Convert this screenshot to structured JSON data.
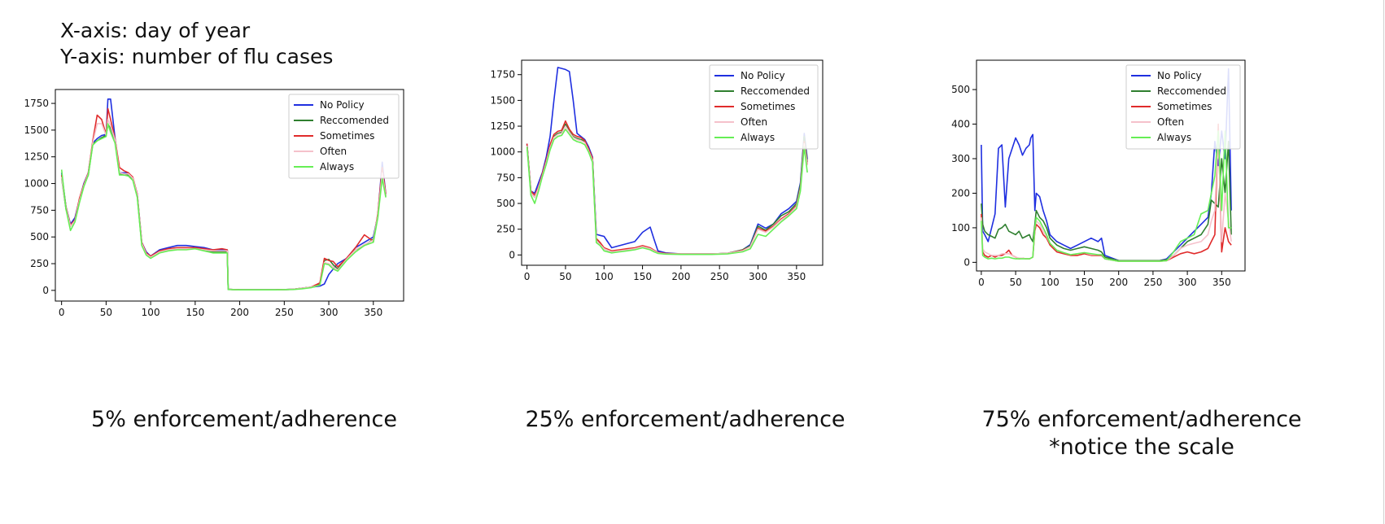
{
  "notes": {
    "x_axis": "X-axis: day of year",
    "y_axis": "Y-axis: number of flu cases"
  },
  "captions": [
    {
      "line1": "5% enforcement/adherence",
      "line2": ""
    },
    {
      "line1": "25% enforcement/adherence",
      "line2": ""
    },
    {
      "line1": "75% enforcement/adherence",
      "line2": "*notice the scale"
    }
  ],
  "colors": {
    "no_policy": "#1f2fe0",
    "reccomended": "#2f7f2f",
    "sometimes": "#e02b2b",
    "often": "#f5c1cb",
    "always": "#66ee55"
  },
  "chart_data": [
    {
      "type": "line",
      "title": "",
      "xlabel": "",
      "ylabel": "",
      "xlim": [
        -7,
        384
      ],
      "ylim": [
        -100,
        1880
      ],
      "xticks": [
        0,
        50,
        100,
        150,
        200,
        250,
        300,
        350
      ],
      "yticks": [
        0,
        250,
        500,
        750,
        1000,
        1250,
        1500,
        1750
      ],
      "grid": false,
      "legend": "top-right",
      "x": [
        0,
        5,
        10,
        15,
        20,
        25,
        30,
        35,
        40,
        45,
        50,
        52,
        55,
        60,
        65,
        70,
        75,
        80,
        85,
        90,
        95,
        100,
        110,
        120,
        130,
        140,
        150,
        160,
        170,
        180,
        186,
        187,
        200,
        220,
        240,
        260,
        270,
        280,
        290,
        295,
        300,
        305,
        310,
        320,
        330,
        340,
        350,
        355,
        360,
        364
      ],
      "series": [
        {
          "name": "No Policy",
          "color": "#1f2fe0",
          "values": [
            1100,
            780,
            620,
            680,
            850,
            1000,
            1100,
            1380,
            1420,
            1450,
            1460,
            1790,
            1790,
            1430,
            1100,
            1100,
            1100,
            1050,
            900,
            450,
            360,
            320,
            380,
            400,
            420,
            420,
            410,
            400,
            380,
            380,
            380,
            10,
            5,
            5,
            5,
            10,
            20,
            30,
            40,
            60,
            150,
            200,
            250,
            300,
            400,
            450,
            500,
            700,
            1200,
            900
          ]
        },
        {
          "name": "Reccomended",
          "color": "#2f7f2f",
          "values": [
            1050,
            760,
            600,
            650,
            830,
            980,
            1080,
            1370,
            1400,
            1430,
            1450,
            1550,
            1520,
            1400,
            1090,
            1080,
            1080,
            1040,
            880,
            430,
            340,
            310,
            360,
            380,
            390,
            390,
            390,
            380,
            360,
            360,
            360,
            10,
            5,
            5,
            5,
            10,
            20,
            30,
            60,
            280,
            290,
            240,
            200,
            300,
            380,
            420,
            480,
            700,
            1100,
            880
          ]
        },
        {
          "name": "Sometimes",
          "color": "#e02b2b",
          "values": [
            1080,
            780,
            610,
            660,
            860,
            990,
            1100,
            1400,
            1640,
            1600,
            1460,
            1700,
            1600,
            1420,
            1150,
            1120,
            1100,
            1060,
            900,
            450,
            350,
            320,
            370,
            390,
            400,
            400,
            400,
            390,
            380,
            390,
            380,
            10,
            5,
            5,
            5,
            10,
            20,
            30,
            70,
            300,
            280,
            270,
            220,
            300,
            400,
            520,
            460,
            720,
            1150,
            900
          ]
        },
        {
          "name": "Often",
          "color": "#f5c1cb",
          "values": [
            1060,
            770,
            600,
            650,
            840,
            980,
            1090,
            1380,
            1560,
            1560,
            1450,
            1600,
            1540,
            1410,
            1100,
            1090,
            1090,
            1050,
            890,
            440,
            340,
            310,
            360,
            380,
            390,
            390,
            390,
            380,
            370,
            370,
            370,
            10,
            5,
            5,
            5,
            10,
            20,
            30,
            50,
            260,
            250,
            220,
            190,
            290,
            380,
            430,
            470,
            700,
            1100,
            880
          ]
        },
        {
          "name": "Always",
          "color": "#66ee55",
          "values": [
            1130,
            760,
            560,
            640,
            820,
            970,
            1080,
            1360,
            1400,
            1420,
            1440,
            1560,
            1480,
            1380,
            1080,
            1080,
            1070,
            1030,
            870,
            420,
            330,
            300,
            350,
            370,
            380,
            380,
            390,
            370,
            350,
            350,
            350,
            8,
            5,
            5,
            5,
            8,
            15,
            25,
            50,
            250,
            240,
            200,
            180,
            280,
            360,
            420,
            450,
            680,
            1050,
            870
          ]
        }
      ]
    },
    {
      "type": "line",
      "title": "",
      "xlabel": "",
      "ylabel": "",
      "xlim": [
        -7,
        384
      ],
      "ylim": [
        -100,
        1890
      ],
      "xticks": [
        0,
        50,
        100,
        150,
        200,
        250,
        300,
        350
      ],
      "yticks": [
        0,
        250,
        500,
        750,
        1000,
        1250,
        1500,
        1750
      ],
      "grid": false,
      "legend": "top-right",
      "x": [
        0,
        5,
        10,
        15,
        20,
        25,
        30,
        35,
        40,
        45,
        50,
        55,
        60,
        65,
        70,
        75,
        80,
        85,
        90,
        95,
        100,
        110,
        120,
        130,
        140,
        150,
        160,
        165,
        170,
        180,
        200,
        220,
        240,
        260,
        280,
        290,
        300,
        310,
        320,
        330,
        340,
        350,
        355,
        360,
        364
      ],
      "series": [
        {
          "name": "No Policy",
          "color": "#1f2fe0",
          "values": [
            1080,
            620,
            600,
            700,
            800,
            950,
            1150,
            1500,
            1820,
            1810,
            1800,
            1780,
            1500,
            1180,
            1150,
            1120,
            1050,
            950,
            200,
            190,
            180,
            70,
            90,
            110,
            130,
            220,
            270,
            150,
            40,
            20,
            10,
            10,
            10,
            15,
            50,
            100,
            300,
            260,
            300,
            400,
            450,
            520,
            700,
            1180,
            930
          ]
        },
        {
          "name": "Reccomended",
          "color": "#2f7f2f",
          "values": [
            1070,
            600,
            560,
            650,
            780,
            900,
            1050,
            1150,
            1180,
            1190,
            1270,
            1200,
            1150,
            1130,
            1120,
            1100,
            1020,
            930,
            150,
            110,
            60,
            30,
            40,
            50,
            60,
            80,
            60,
            40,
            20,
            10,
            10,
            10,
            10,
            15,
            50,
            90,
            280,
            240,
            300,
            380,
            420,
            500,
            680,
            1150,
            900
          ]
        },
        {
          "name": "Sometimes",
          "color": "#e02b2b",
          "values": [
            1080,
            620,
            580,
            660,
            790,
            920,
            1070,
            1170,
            1200,
            1210,
            1300,
            1220,
            1170,
            1150,
            1140,
            1110,
            1030,
            940,
            160,
            120,
            70,
            40,
            50,
            60,
            70,
            90,
            70,
            45,
            25,
            15,
            10,
            10,
            10,
            15,
            45,
            80,
            260,
            230,
            280,
            350,
            400,
            480,
            650,
            1100,
            880
          ]
        },
        {
          "name": "Often",
          "color": "#f5c1cb",
          "values": [
            1060,
            600,
            560,
            650,
            770,
            900,
            1040,
            1140,
            1170,
            1180,
            1250,
            1190,
            1140,
            1120,
            1110,
            1090,
            1010,
            920,
            140,
            100,
            60,
            30,
            40,
            50,
            60,
            80,
            60,
            40,
            20,
            10,
            10,
            10,
            10,
            15,
            40,
            80,
            250,
            220,
            270,
            340,
            390,
            470,
            640,
            1080,
            870
          ]
        },
        {
          "name": "Always",
          "color": "#66ee55",
          "values": [
            1050,
            580,
            500,
            620,
            760,
            880,
            1020,
            1120,
            1150,
            1160,
            1220,
            1170,
            1120,
            1100,
            1090,
            1070,
            1000,
            900,
            120,
            90,
            40,
            20,
            30,
            40,
            50,
            70,
            50,
            30,
            15,
            8,
            5,
            5,
            5,
            10,
            30,
            60,
            200,
            180,
            250,
            320,
            380,
            450,
            620,
            1050,
            800
          ]
        }
      ]
    },
    {
      "type": "line",
      "title": "",
      "xlabel": "",
      "ylabel": "",
      "xlim": [
        -7,
        384
      ],
      "ylim": [
        -25,
        585
      ],
      "xticks": [
        0,
        50,
        100,
        150,
        200,
        250,
        300,
        350
      ],
      "yticks": [
        0,
        100,
        200,
        300,
        400,
        500
      ],
      "grid": false,
      "legend": "top-right",
      "x": [
        0,
        2,
        5,
        10,
        15,
        20,
        25,
        30,
        35,
        40,
        45,
        50,
        55,
        60,
        65,
        70,
        72,
        75,
        78,
        80,
        85,
        90,
        95,
        100,
        110,
        120,
        130,
        140,
        150,
        160,
        170,
        175,
        180,
        200,
        220,
        240,
        260,
        270,
        280,
        290,
        300,
        310,
        320,
        330,
        335,
        340,
        345,
        350,
        355,
        360,
        364
      ],
      "series": [
        {
          "name": "No Policy",
          "color": "#1f2fe0",
          "values": [
            340,
            90,
            80,
            60,
            100,
            140,
            330,
            340,
            160,
            300,
            330,
            360,
            340,
            310,
            330,
            340,
            360,
            370,
            150,
            200,
            190,
            150,
            120,
            80,
            60,
            50,
            40,
            50,
            60,
            70,
            60,
            70,
            20,
            5,
            5,
            5,
            5,
            10,
            30,
            50,
            70,
            90,
            110,
            130,
            200,
            350,
            280,
            380,
            300,
            560,
            150
          ]
        },
        {
          "name": "Reccomended",
          "color": "#2f7f2f",
          "values": [
            170,
            110,
            90,
            80,
            75,
            70,
            95,
            100,
            110,
            90,
            85,
            80,
            90,
            70,
            75,
            80,
            70,
            60,
            110,
            150,
            130,
            120,
            100,
            70,
            50,
            40,
            35,
            40,
            45,
            40,
            35,
            30,
            15,
            5,
            5,
            5,
            5,
            8,
            20,
            40,
            60,
            70,
            80,
            110,
            180,
            170,
            160,
            300,
            200,
            350,
            80
          ]
        },
        {
          "name": "Sometimes",
          "color": "#e02b2b",
          "values": [
            140,
            30,
            20,
            15,
            20,
            15,
            20,
            20,
            25,
            35,
            20,
            15,
            10,
            12,
            10,
            10,
            12,
            15,
            90,
            110,
            100,
            80,
            70,
            50,
            30,
            25,
            20,
            20,
            25,
            20,
            20,
            20,
            10,
            3,
            3,
            3,
            3,
            5,
            15,
            25,
            30,
            25,
            30,
            40,
            60,
            80,
            400,
            30,
            100,
            60,
            50
          ]
        },
        {
          "name": "Often",
          "color": "#f5c1cb",
          "values": [
            130,
            40,
            30,
            25,
            20,
            20,
            20,
            25,
            25,
            25,
            20,
            15,
            12,
            12,
            10,
            10,
            12,
            15,
            100,
            120,
            110,
            90,
            75,
            55,
            35,
            28,
            22,
            25,
            28,
            22,
            22,
            22,
            10,
            3,
            3,
            3,
            3,
            5,
            20,
            40,
            50,
            55,
            60,
            80,
            120,
            150,
            380,
            60,
            200,
            120,
            60
          ]
        },
        {
          "name": "Always",
          "color": "#66ee55",
          "values": [
            120,
            20,
            15,
            10,
            12,
            10,
            12,
            12,
            15,
            15,
            12,
            10,
            10,
            10,
            10,
            10,
            12,
            15,
            100,
            130,
            120,
            100,
            80,
            55,
            35,
            28,
            22,
            25,
            28,
            25,
            22,
            22,
            10,
            3,
            3,
            3,
            3,
            5,
            30,
            60,
            70,
            80,
            140,
            150,
            200,
            250,
            380,
            150,
            380,
            100,
            100
          ]
        }
      ]
    }
  ]
}
